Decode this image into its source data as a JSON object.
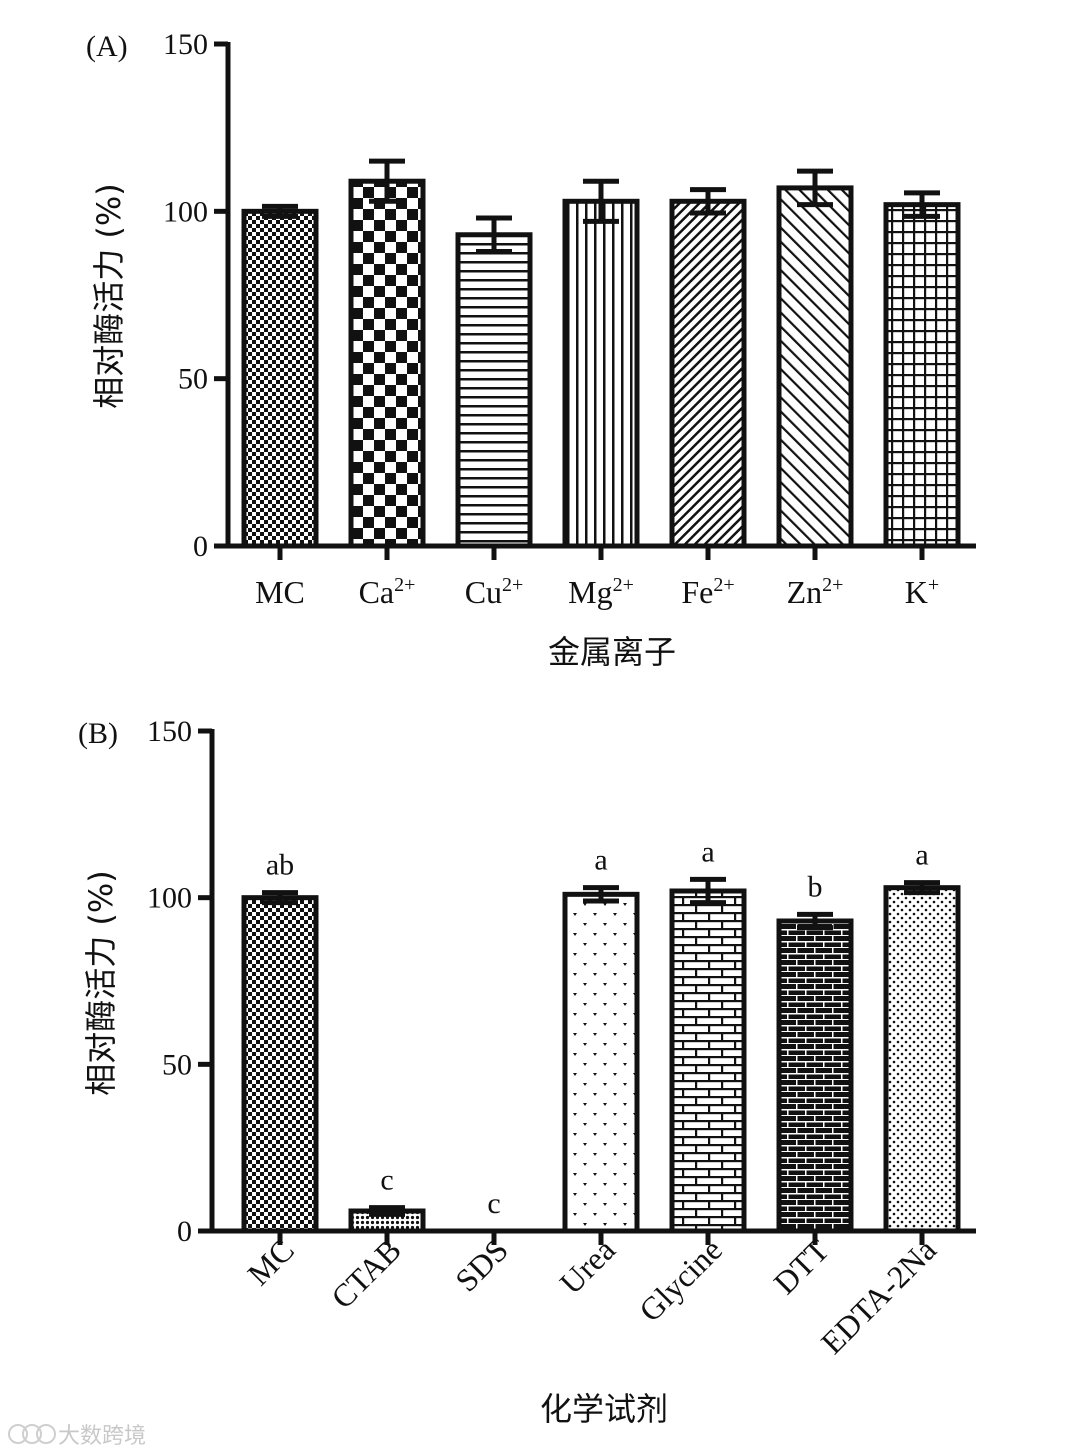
{
  "chart_data": [
    {
      "panel": "(A)",
      "type": "bar",
      "categories": [
        {
          "base": "MC",
          "sup": ""
        },
        {
          "base": "Ca",
          "sup": "2+"
        },
        {
          "base": "Cu",
          "sup": "2+"
        },
        {
          "base": "Mg",
          "sup": "2+"
        },
        {
          "base": "Fe",
          "sup": "2+"
        },
        {
          "base": "Zn",
          "sup": "2+"
        },
        {
          "base": "K",
          "sup": "+"
        }
      ],
      "values": [
        100,
        109,
        93,
        103,
        103,
        107,
        102
      ],
      "errors": [
        1.5,
        6,
        5,
        6,
        3.5,
        5,
        3.5
      ],
      "patterns": [
        "fine-check",
        "checker",
        "horizontal",
        "vertical",
        "diag-dense",
        "diag-sparse",
        "grid"
      ],
      "xlabel": "金属离子",
      "ylabel": "相对酶活力 (%)",
      "ylim": [
        0,
        150
      ],
      "yticks": [
        "0",
        "50",
        "100",
        "150"
      ]
    },
    {
      "panel": "(B)",
      "type": "bar",
      "categories": [
        {
          "base": "MC",
          "sup": ""
        },
        {
          "base": "CTAB",
          "sup": ""
        },
        {
          "base": "SDS",
          "sup": ""
        },
        {
          "base": "Urea",
          "sup": ""
        },
        {
          "base": "Glycine",
          "sup": ""
        },
        {
          "base": "DTT",
          "sup": ""
        },
        {
          "base": "EDTA-2Na",
          "sup": ""
        }
      ],
      "values": [
        100,
        6,
        0,
        101,
        102,
        93,
        103
      ],
      "errors": [
        1.5,
        1,
        0,
        2,
        3.5,
        2,
        1.5
      ],
      "significance": [
        "ab",
        "c",
        "c",
        "a",
        "a",
        "b",
        "a"
      ],
      "patterns": [
        "fine-check",
        "dots-dense",
        "none",
        "hearts",
        "brick-white",
        "brick-black",
        "dots-sparse"
      ],
      "xlabel": "化学试剂",
      "ylabel": "相对酶活力 (%)",
      "ylim": [
        0,
        150
      ],
      "yticks": [
        "0",
        "50",
        "100",
        "150"
      ]
    }
  ],
  "watermark": {
    "text": "大数跨境",
    "icon": "watermark-logo-icon"
  }
}
